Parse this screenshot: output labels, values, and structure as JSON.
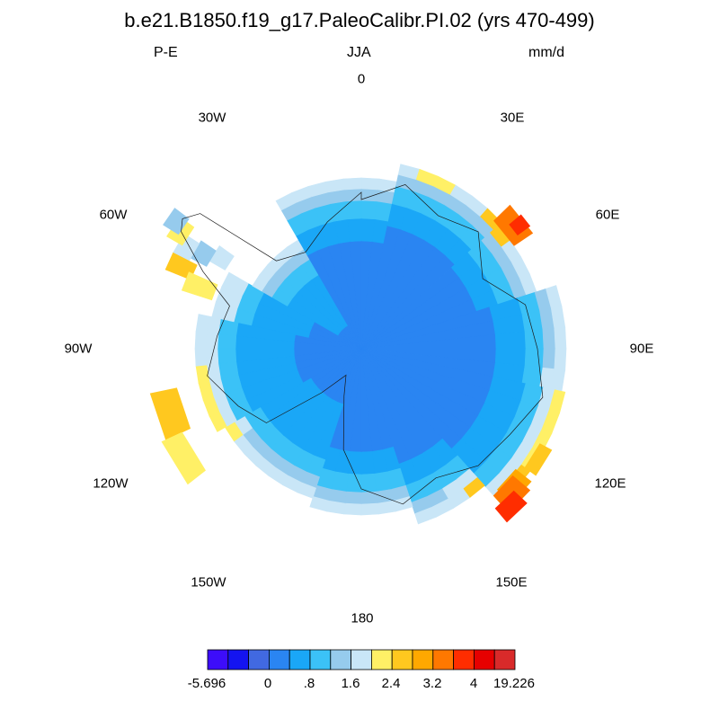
{
  "title": "b.e21.B1850.f19_g17.PaleoCalibr.PI.02 (yrs 470-499)",
  "left_label": "P-E",
  "center_label": "JJA",
  "right_label": "mm/d",
  "longitude_labels": {
    "lon_0": "0",
    "lon_30E": "30E",
    "lon_60E": "60E",
    "lon_90E": "90E",
    "lon_120E": "120E",
    "lon_150E": "150E",
    "lon_180": "180",
    "lon_150W": "150W",
    "lon_120W": "120W",
    "lon_90W": "90W",
    "lon_60W": "60W",
    "lon_30W": "30W"
  },
  "colorbar": {
    "colors": [
      "#3d0dfa",
      "#1414f0",
      "#4169e1",
      "#2a85f2",
      "#1aa7f7",
      "#3bc2f7",
      "#96cbed",
      "#c9e6f7",
      "#fff066",
      "#ffc81f",
      "#ffa800",
      "#ff7800",
      "#ff2d00",
      "#e60000",
      "#d92a2a"
    ],
    "labels": [
      "-5.696",
      "0",
      ".8",
      "1.6",
      "2.4",
      "3.2",
      "4",
      "19.226"
    ]
  },
  "chart_data": {
    "type": "heatmap",
    "projection": "polar stereographic (south pole)",
    "variable": "P-E",
    "season": "JJA",
    "units": "mm/d",
    "value_range": [
      -5.696,
      19.226
    ],
    "pattern": "interior ~0-0.4 mm/d, margins 1.2-2.4 mm/d, coastal peaks >4 mm/d near 50-60E and 120-130E"
  }
}
